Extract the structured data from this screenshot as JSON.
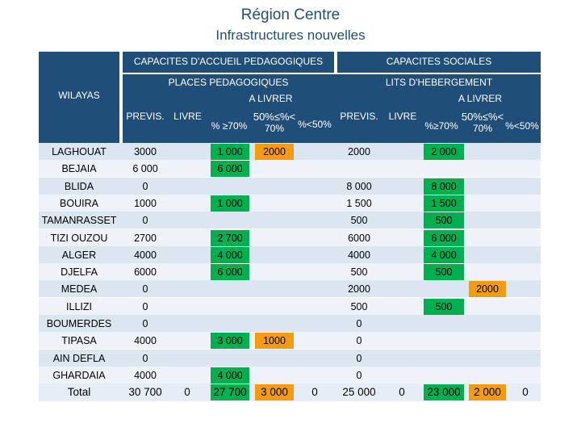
{
  "title": "Région Centre",
  "subtitle": "Infrastructures nouvelles",
  "colors": {
    "header_blue": "#1f4e79",
    "row_light": "#dce6f1",
    "row_lighter": "#eef3f9",
    "green": "#00b050",
    "orange": "#f39c12"
  },
  "headers": {
    "wilayas": "WILAYAS",
    "ped_group": "CAPACITES D'ACCUEIL PEDAGOGIQUES",
    "soc_group": "CAPACITES SOCIALES",
    "ped_sub": "PLACES PEDAGOGIQUES",
    "soc_sub": "LITS D'HEBERGEMENT",
    "ped_alivrer": "A LIVRER",
    "soc_alivrer": "A LIVRER",
    "ped_previs": "PREVIS.",
    "ped_livre": "LIVRE",
    "ped_ge70": "% ≥70%",
    "ped_mid_a": "50%≤%<",
    "ped_mid_b": "70%",
    "ped_lt50": "%<50%",
    "soc_previs": "PREVIS.",
    "soc_livre": "LIVRE",
    "soc_ge70": "%≥70%",
    "soc_mid_a": "50%≤%<",
    "soc_mid_b": "70%",
    "soc_lt50": "%<50%"
  },
  "rows": [
    {
      "wilaya": "LAGHOUAT",
      "ped_previs": "3000",
      "ped_livre": "",
      "ped_ge70": "1 000",
      "ped_mid": "2000",
      "ped_lt50": "",
      "soc_previs": "2000",
      "soc_livre": "",
      "soc_ge70": "2 000",
      "soc_mid": "",
      "soc_lt50": ""
    },
    {
      "wilaya": "BEJAIA",
      "ped_previs": "6 000",
      "ped_livre": "",
      "ped_ge70": "6 000",
      "ped_mid": "",
      "ped_lt50": "",
      "soc_previs": "",
      "soc_livre": "",
      "soc_ge70": "",
      "soc_mid": "",
      "soc_lt50": ""
    },
    {
      "wilaya": "BLIDA",
      "ped_previs": "0",
      "ped_livre": "",
      "ped_ge70": "",
      "ped_mid": "",
      "ped_lt50": "",
      "soc_previs": "8 000",
      "soc_livre": "",
      "soc_ge70": "8 000",
      "soc_mid": "",
      "soc_lt50": ""
    },
    {
      "wilaya": "BOUIRA",
      "ped_previs": "1000",
      "ped_livre": "",
      "ped_ge70": "1 000",
      "ped_mid": "",
      "ped_lt50": "",
      "soc_previs": "1 500",
      "soc_livre": "",
      "soc_ge70": "1 500",
      "soc_mid": "",
      "soc_lt50": ""
    },
    {
      "wilaya": "TAMANRASSET",
      "ped_previs": "0",
      "ped_livre": "",
      "ped_ge70": "",
      "ped_mid": "",
      "ped_lt50": "",
      "soc_previs": "500",
      "soc_livre": "",
      "soc_ge70": "500",
      "soc_mid": "",
      "soc_lt50": ""
    },
    {
      "wilaya": "TIZI OUZOU",
      "ped_previs": "2700",
      "ped_livre": "",
      "ped_ge70": "2 700",
      "ped_mid": "",
      "ped_lt50": "",
      "soc_previs": "6000",
      "soc_livre": "",
      "soc_ge70": "6 000",
      "soc_mid": "",
      "soc_lt50": ""
    },
    {
      "wilaya": "ALGER",
      "ped_previs": "4000",
      "ped_livre": "",
      "ped_ge70": "4 000",
      "ped_mid": "",
      "ped_lt50": "",
      "soc_previs": "4000",
      "soc_livre": "",
      "soc_ge70": "4 000",
      "soc_mid": "",
      "soc_lt50": ""
    },
    {
      "wilaya": "DJELFA",
      "ped_previs": "6000",
      "ped_livre": "",
      "ped_ge70": "6 000",
      "ped_mid": "",
      "ped_lt50": "",
      "soc_previs": "500",
      "soc_livre": "",
      "soc_ge70": "500",
      "soc_mid": "",
      "soc_lt50": ""
    },
    {
      "wilaya": "MEDEA",
      "ped_previs": "0",
      "ped_livre": "",
      "ped_ge70": "",
      "ped_mid": "",
      "ped_lt50": "",
      "soc_previs": "2000",
      "soc_livre": "",
      "soc_ge70": "",
      "soc_mid": "2000",
      "soc_lt50": ""
    },
    {
      "wilaya": "ILLIZI",
      "ped_previs": "0",
      "ped_livre": "",
      "ped_ge70": "",
      "ped_mid": "",
      "ped_lt50": "",
      "soc_previs": "500",
      "soc_livre": "",
      "soc_ge70": "500",
      "soc_mid": "",
      "soc_lt50": ""
    },
    {
      "wilaya": "BOUMERDES",
      "ped_previs": "0",
      "ped_livre": "",
      "ped_ge70": "",
      "ped_mid": "",
      "ped_lt50": "",
      "soc_previs": "0",
      "soc_livre": "",
      "soc_ge70": "",
      "soc_mid": "",
      "soc_lt50": ""
    },
    {
      "wilaya": "TIPASA",
      "ped_previs": "4000",
      "ped_livre": "",
      "ped_ge70": "3 000",
      "ped_mid": "1000",
      "ped_lt50": "",
      "soc_previs": "0",
      "soc_livre": "",
      "soc_ge70": "",
      "soc_mid": "",
      "soc_lt50": ""
    },
    {
      "wilaya": "AIN DEFLA",
      "ped_previs": "0",
      "ped_livre": "",
      "ped_ge70": "",
      "ped_mid": "",
      "ped_lt50": "",
      "soc_previs": "0",
      "soc_livre": "",
      "soc_ge70": "",
      "soc_mid": "",
      "soc_lt50": ""
    },
    {
      "wilaya": "GHARDAIA",
      "ped_previs": "4000",
      "ped_livre": "",
      "ped_ge70": "4 000",
      "ped_mid": "",
      "ped_lt50": "",
      "soc_previs": "0",
      "soc_livre": "",
      "soc_ge70": "",
      "soc_mid": "",
      "soc_lt50": ""
    }
  ],
  "total": {
    "wilaya": "Total",
    "ped_previs": "30 700",
    "ped_livre": "0",
    "ped_ge70": "27 700",
    "ped_mid": "3 000",
    "ped_lt50": "0",
    "soc_previs": "25 000",
    "soc_livre": "0",
    "soc_ge70": "23 000",
    "soc_mid": "2 000",
    "soc_lt50": "0"
  }
}
